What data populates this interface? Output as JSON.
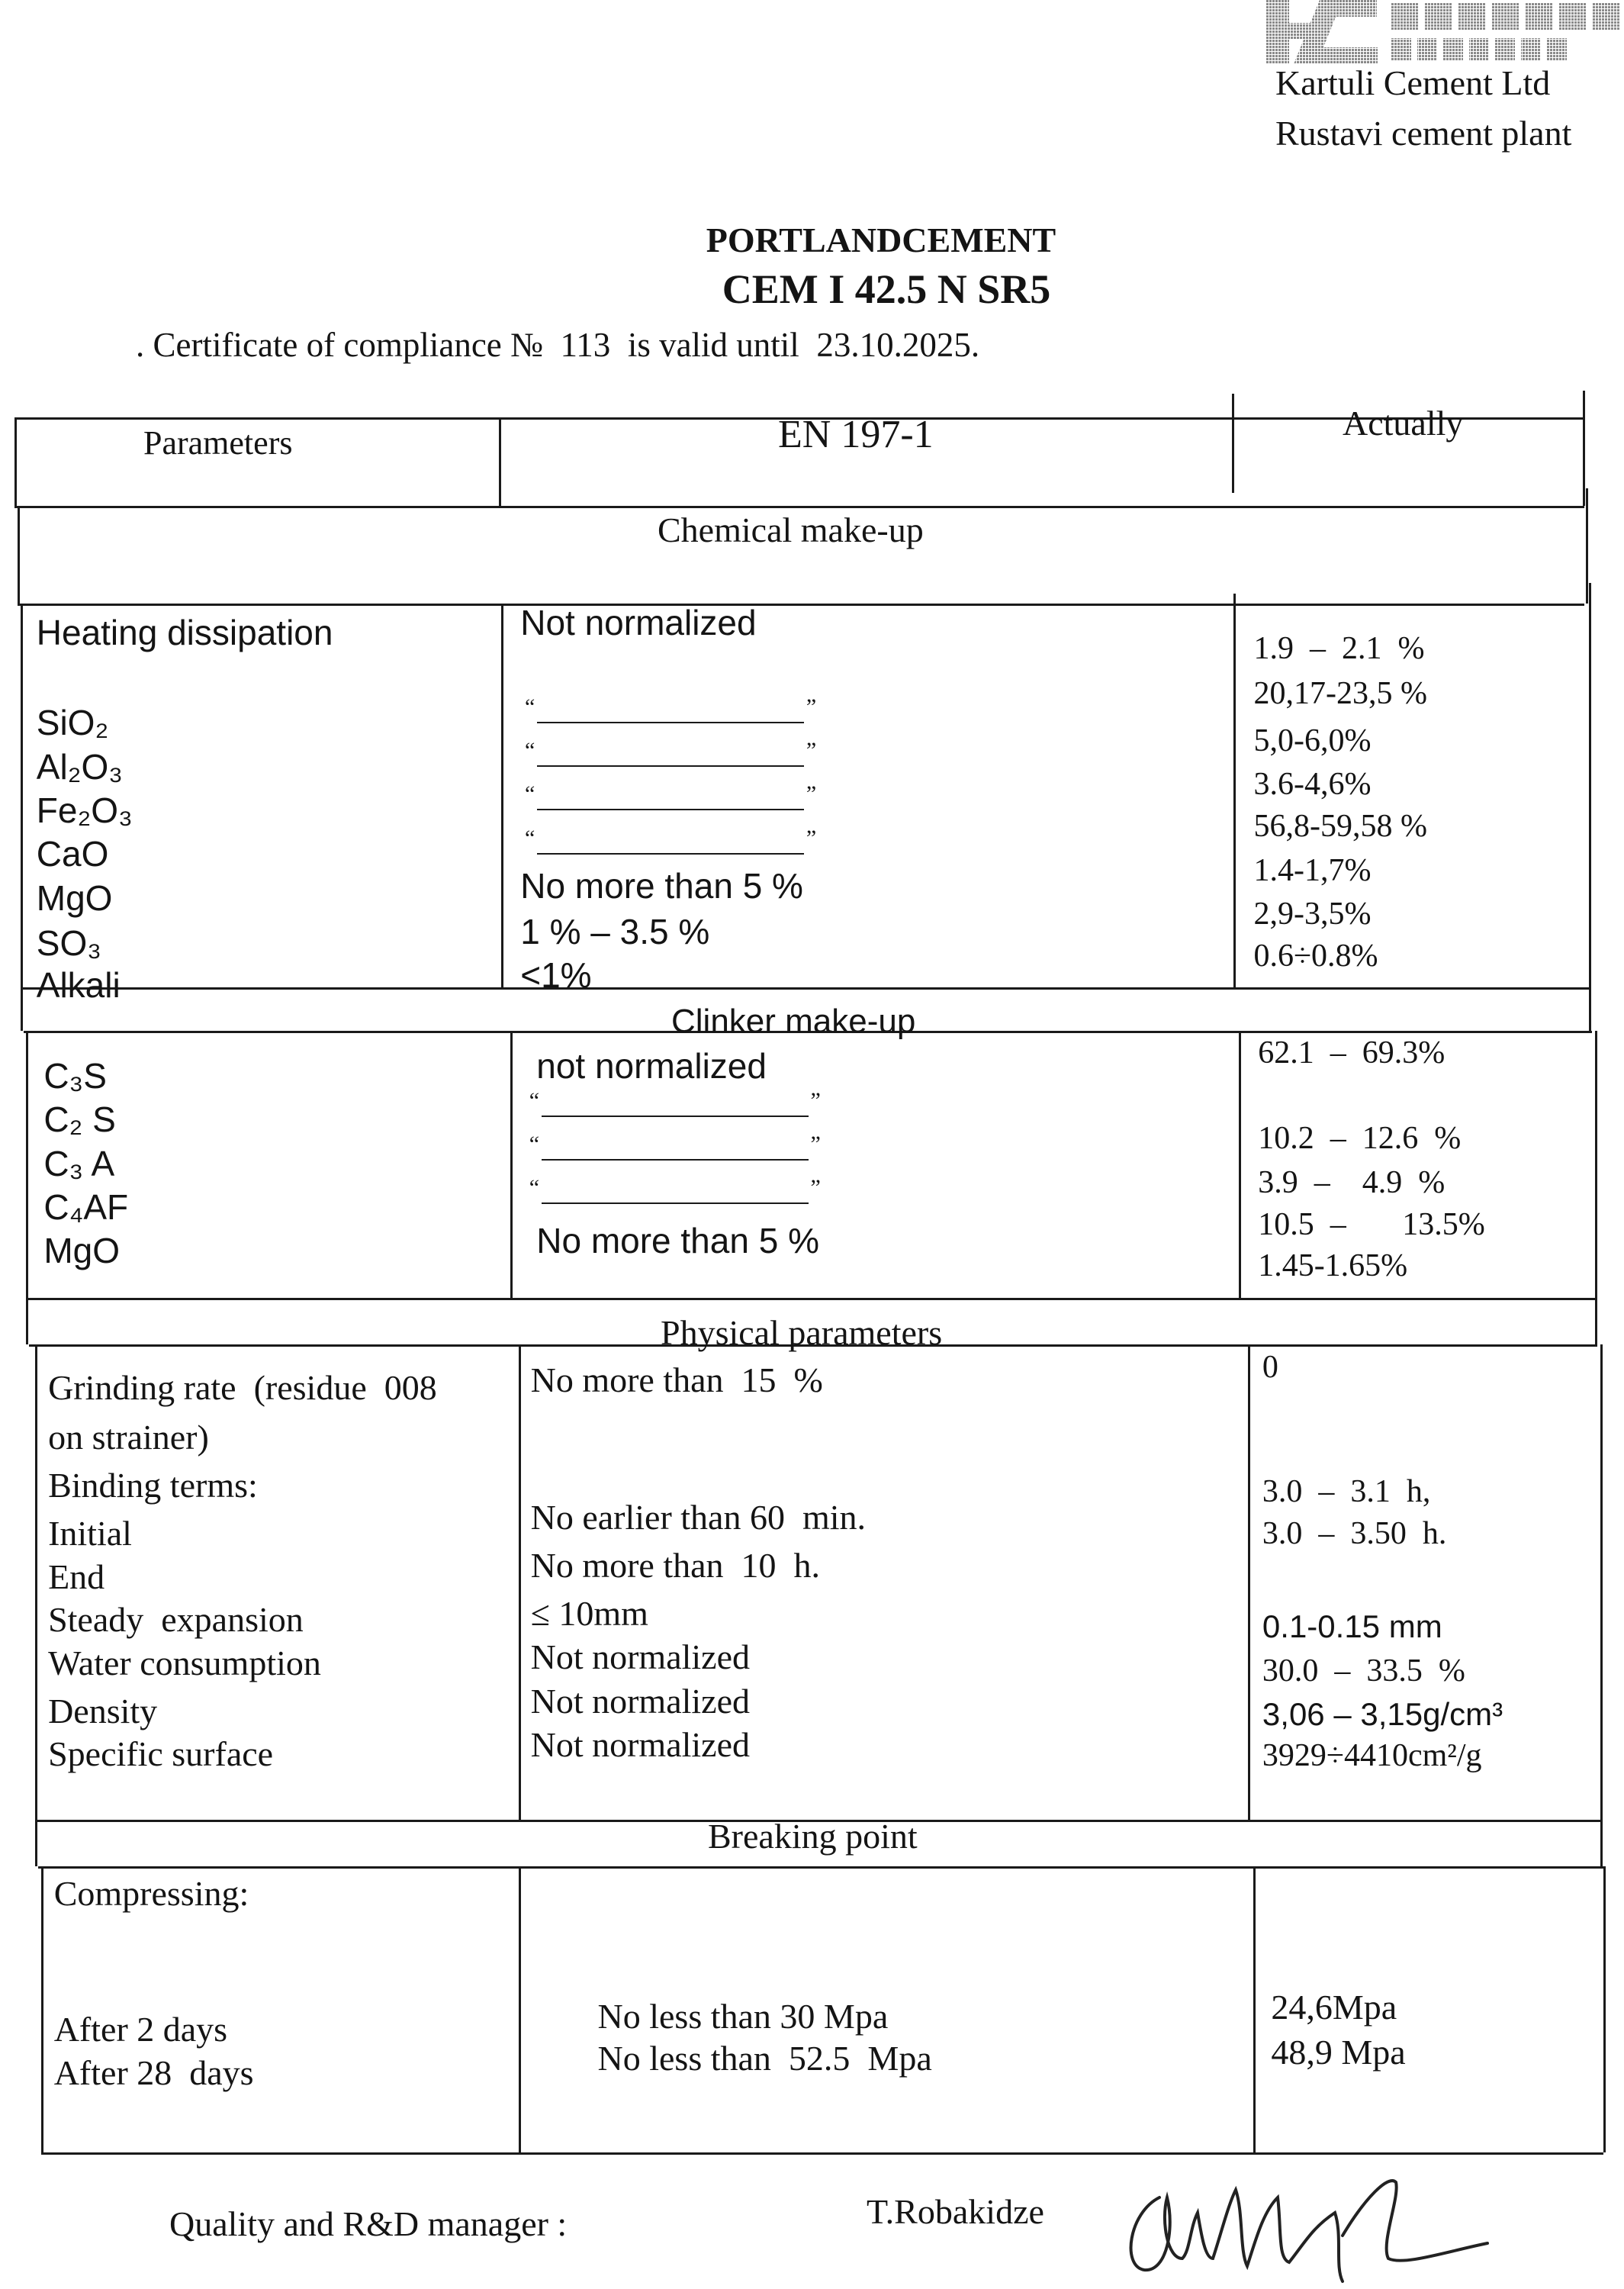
{
  "letterhead": {
    "company": "Kartuli Cement Ltd",
    "plant": "Rustavi cement plant",
    "logo_color": "#9a9a9a"
  },
  "title": {
    "product": "PORTLANDCEMENT",
    "grade": "CEM I 42.5 N SR5",
    "certificate_prefix": ". Certificate of compliance №",
    "certificate_number": "113",
    "certificate_middle": "is valid until",
    "valid_until": "23.10.2025."
  },
  "table": {
    "headers": {
      "parameters": "Parameters",
      "standard": "EN 197-1",
      "actual": "Actually"
    },
    "ditto": "“ ”",
    "sections": {
      "chemical": {
        "title": "Chemical make-up",
        "parameters": [
          "Heating dissipation",
          "SiO₂",
          "Al₂O₃",
          "Fe₂O₃",
          "CaO",
          "MgO",
          "SO₃",
          "Alkali"
        ],
        "standard": [
          "Not normalized",
          "“ ”",
          "“ ”",
          "“ ”",
          "“ ”",
          "No more than 5 %",
          "1 % – 3.5 %",
          "<1%"
        ],
        "actual": [
          "1.9  –  2.1  %",
          "20,17-23,5 %",
          "5,0-6,0%",
          "3.6-4,6%",
          "56,8-59,58 %",
          "1.4-1,7%",
          "2,9-3,5%",
          "0.6÷0.8%"
        ]
      },
      "clinker": {
        "title": "Clinker make-up",
        "parameters": [
          "C₃S",
          "C₂ S",
          "C₃ A",
          "C₄AF",
          "MgO"
        ],
        "standard": [
          "not normalized",
          "“ ”",
          "“ ”",
          "“ ”",
          "No more than 5 %"
        ],
        "actual": [
          "62.1  –  69.3%",
          "10.2  –  12.6  %",
          "3.9  –    4.9  %",
          "10.5  –       13.5%",
          "1.45-1.65%"
        ]
      },
      "physical": {
        "title": "Physical parameters",
        "parameters": [
          "Grinding rate  (residue  008",
          "on strainer)",
          "Binding terms:",
          "Initial",
          "End",
          "Steady  expansion",
          "Water consumption",
          "Density",
          "Specific surface"
        ],
        "standard": [
          "No more than  15  %",
          "No earlier than 60  min.",
          "No more than  10  h.",
          "≤ 10mm",
          "Not normalized",
          "Not normalized",
          "Not normalized"
        ],
        "actual": [
          "0",
          "3.0  –  3.1  h,",
          "3.0  –  3.50  h.",
          "0.1-0.15 mm",
          "30.0  –  33.5  %",
          "3,06 – 3,15g/cm³",
          "3929÷4410cm²/g"
        ]
      },
      "breaking": {
        "title": "Breaking point",
        "parameters": [
          "Compressing:",
          "After 2 days",
          "After 28  days"
        ],
        "standard": [
          "No less than 30 Mpa",
          "No less than  52.5  Mpa"
        ],
        "actual": [
          "24,6Mpa",
          "48,9 Mpa"
        ]
      }
    }
  },
  "footer": {
    "role": "Quality and R&D manager :",
    "name": "T.Robakidze"
  }
}
